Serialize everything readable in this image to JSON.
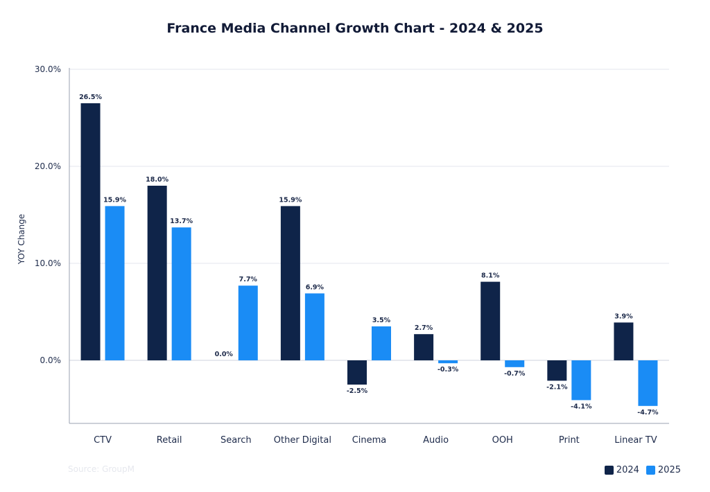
{
  "chart_data": {
    "type": "bar",
    "title": "France Media Channel Growth Chart - 2024 & 2025",
    "ylabel": "YOY Change",
    "xlabel": "",
    "categories": [
      "CTV",
      "Retail",
      "Search",
      "Other Digital",
      "Cinema",
      "Audio",
      "OOH",
      "Print",
      "Linear TV"
    ],
    "series": [
      {
        "name": "2024",
        "color": "#0f2449",
        "values": [
          26.5,
          18.0,
          0.0,
          15.9,
          -2.5,
          2.7,
          8.1,
          -2.1,
          3.9
        ],
        "labels": [
          "26.5%",
          "18.0%",
          "0.0%",
          "15.9%",
          "-2.5%",
          "2.7%",
          "8.1%",
          "-2.1%",
          "3.9%"
        ]
      },
      {
        "name": "2025",
        "color": "#1a8cf5",
        "values": [
          15.9,
          13.7,
          7.7,
          6.9,
          3.5,
          -0.3,
          -0.7,
          -4.1,
          -4.7
        ],
        "labels": [
          "15.9%",
          "13.7%",
          "7.7%",
          "6.9%",
          "3.5%",
          "-0.3%",
          "-0.7%",
          "-4.1%",
          "-4.7%"
        ]
      }
    ],
    "yticks": [
      0,
      10,
      20,
      30
    ],
    "ytick_labels": [
      "0.0%",
      "10.0%",
      "20.0%",
      "30.0%"
    ],
    "ylim": [
      -6.5,
      30
    ],
    "grid": true,
    "legend": "bottom-right",
    "source": "Source: GroupM"
  }
}
